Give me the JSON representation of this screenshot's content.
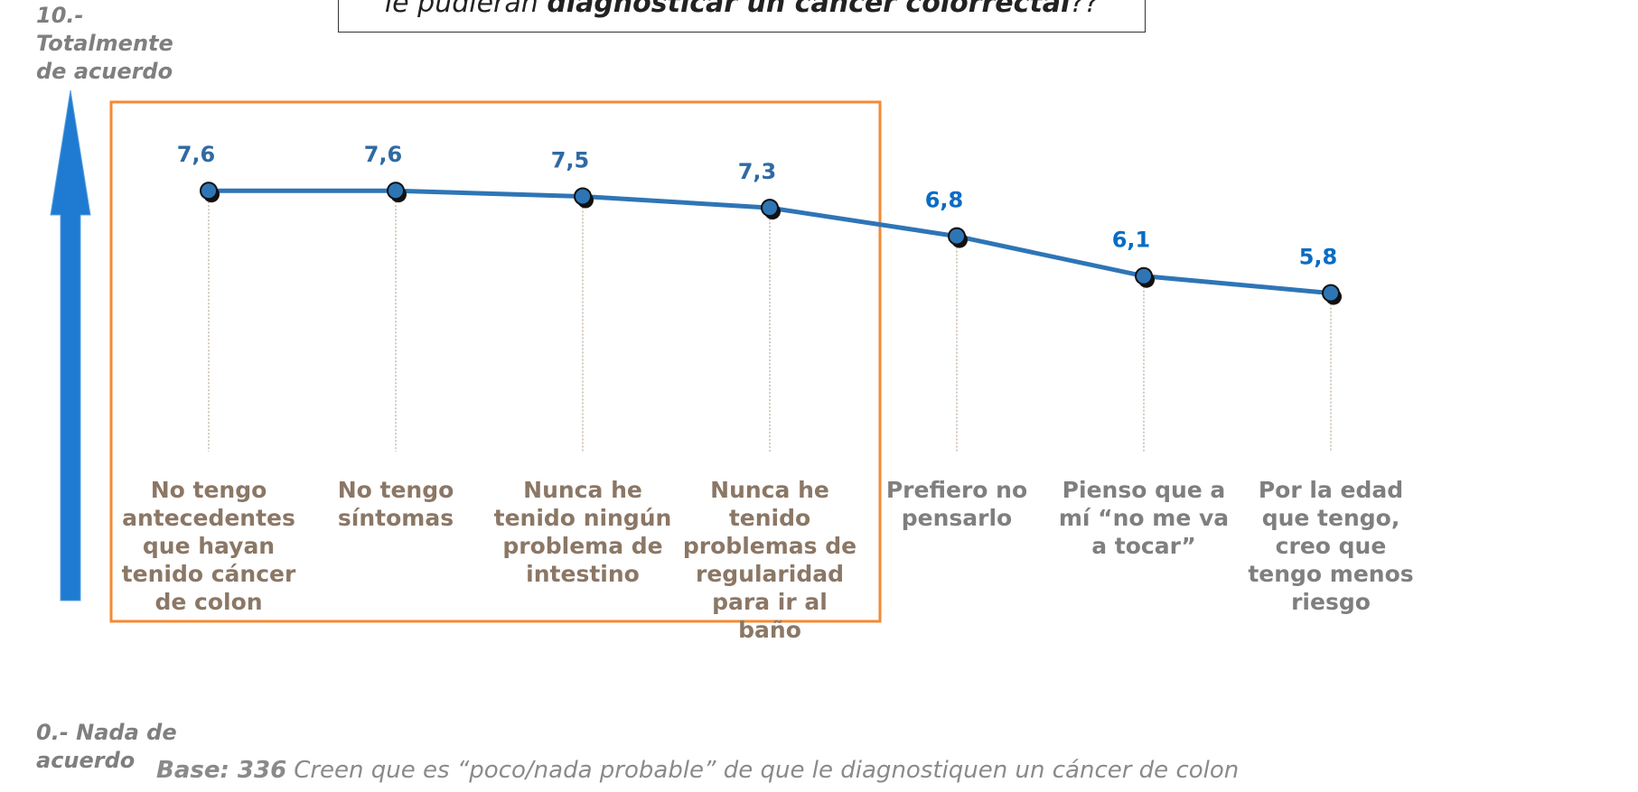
{
  "chart_data": {
    "type": "line",
    "title_parts": [
      "le pudieran ",
      "diagnosticar un cáncer colorrectal",
      "??"
    ],
    "y_top_label": "10.- Totalmente de acuerdo",
    "y_bottom_label": "0.- Nada de acuerdo",
    "categories": [
      "No tengo antecedentes que hayan tenido cáncer de colon",
      "No tengo síntomas",
      "Nunca he tenido ningún problema de intestino",
      "Nunca he tenido problemas de regularidad para ir al baño",
      "Prefiero no pensarlo",
      "Pienso que a mí “no me va a tocar”",
      "Por la edad que tengo, creo que tengo menos riesgo"
    ],
    "values": [
      7.6,
      7.6,
      7.5,
      7.3,
      6.8,
      6.1,
      5.8
    ],
    "value_labels": [
      "7,6",
      "7,6",
      "7,5",
      "7,3",
      "6,8",
      "6,1",
      "5,8"
    ],
    "highlighted": [
      true,
      true,
      true,
      true,
      false,
      false,
      false
    ],
    "color": "#2e75b6",
    "highlight_color": "#f58a33",
    "highlight_label_color": "#8b7765",
    "label_color": "#7f7f7f",
    "highlight_value_color": "#2f6aa3",
    "value_color": "#0a6cc4",
    "ylim": [
      0,
      10
    ],
    "footnote": {
      "bold": "Base: 336",
      "text": "Creen que es “poco/nada probable” de que le diagnostiquen un cáncer de colon"
    }
  }
}
